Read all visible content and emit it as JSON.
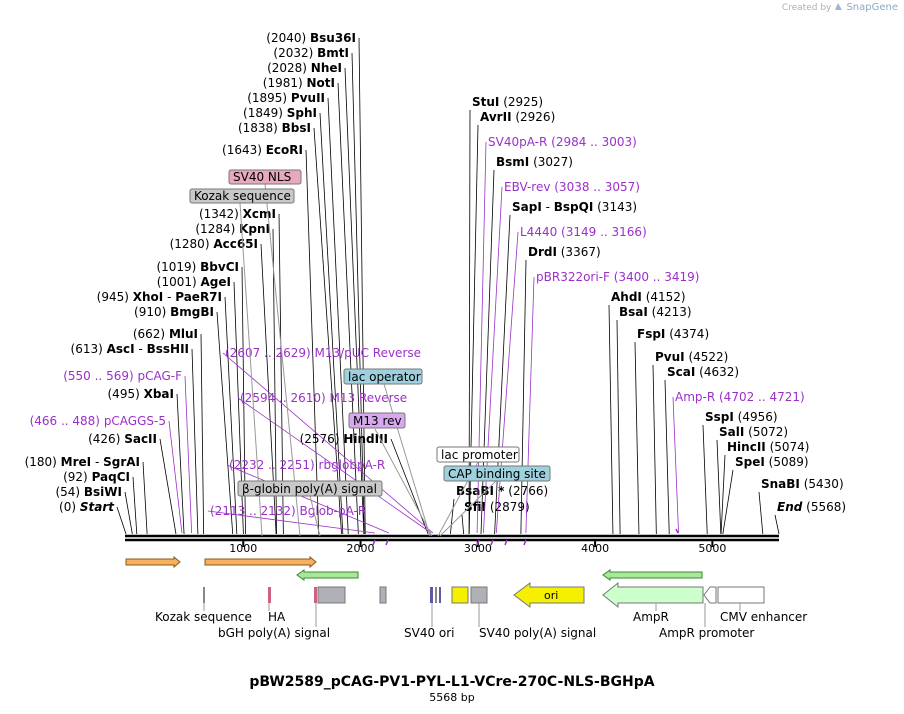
{
  "credit": {
    "prefix": "Created by",
    "brand": "SnapGene"
  },
  "map": {
    "title": "pBW2589_pCAG-PV1-PYL-L1-VCre-270C-NLS-BGHpA",
    "size_label": "5568 bp",
    "length_bp": 5568,
    "ruler_ticks": [
      "1000",
      "2000",
      "3000",
      "4000",
      "5000"
    ],
    "ruler_tick_values": [
      1000,
      2000,
      3000,
      4000,
      5000
    ],
    "colors": {
      "enzyme": "#000000",
      "primer": "#9b30c9",
      "line": "#000000"
    }
  },
  "enzymes_left": [
    {
      "pos": "(0)",
      "name": "Start",
      "bp": 0,
      "italic": true
    },
    {
      "pos": "(54)",
      "name": "BsiWI",
      "bp": 54
    },
    {
      "pos": "(92)",
      "name": "PaqCI",
      "bp": 92
    },
    {
      "pos": "(180)",
      "name": "MreI",
      "sep": "-",
      "name2": "SgrAI",
      "bp": 180
    },
    {
      "pos": "(426)",
      "name": "SacII",
      "bp": 426
    },
    {
      "pos": "(495)",
      "name": "XbaI",
      "bp": 495
    },
    {
      "pos": "(613)",
      "name": "AscI",
      "sep": "-",
      "name2": "BssHII",
      "bp": 613
    },
    {
      "pos": "(662)",
      "name": "MluI",
      "bp": 662
    },
    {
      "pos": "(910)",
      "name": "BmgBI",
      "bp": 910
    },
    {
      "pos": "(945)",
      "name": "XhoI",
      "sep": "-",
      "name2": "PaeR7I",
      "bp": 945
    },
    {
      "pos": "(1001)",
      "name": "AgeI",
      "bp": 1001
    },
    {
      "pos": "(1019)",
      "name": "BbvCI",
      "bp": 1019
    },
    {
      "pos": "(1280)",
      "name": "Acc65I",
      "bp": 1280
    },
    {
      "pos": "(1284)",
      "name": "KpnI",
      "bp": 1284
    },
    {
      "pos": "(1342)",
      "name": "XcmI",
      "bp": 1342
    },
    {
      "pos": "(1643)",
      "name": "EcoRI",
      "bp": 1643
    },
    {
      "pos": "(1838)",
      "name": "BbsI",
      "bp": 1838
    },
    {
      "pos": "(1849)",
      "name": "SphI",
      "bp": 1849
    },
    {
      "pos": "(1895)",
      "name": "PvuII",
      "bp": 1895
    },
    {
      "pos": "(1981)",
      "name": "NotI",
      "bp": 1981
    },
    {
      "pos": "(2028)",
      "name": "NheI",
      "bp": 2028
    },
    {
      "pos": "(2032)",
      "name": "BmtI",
      "bp": 2032
    },
    {
      "pos": "(2040)",
      "name": "Bsu36I",
      "bp": 2040
    },
    {
      "pos": "(2576)",
      "name": "HindIII",
      "bp": 2576
    }
  ],
  "enzymes_right": [
    {
      "name": "StuI",
      "pos": "(2925)",
      "bp": 2925
    },
    {
      "name": "AvrII",
      "pos": "(2926)",
      "bp": 2926
    },
    {
      "name": "BsmI",
      "pos": "(3027)",
      "bp": 3027
    },
    {
      "name": "SapI",
      "sep": "-",
      "name2": "BspQI",
      "pos": "(3143)",
      "bp": 3143
    },
    {
      "name": "DrdI",
      "pos": "(3367)",
      "bp": 3367
    },
    {
      "name": "BsaBI",
      "star": "*",
      "pos": "(2766)",
      "bp": 2766
    },
    {
      "name": "SfiI",
      "pos": "(2879)",
      "bp": 2879
    },
    {
      "name": "AhdI",
      "pos": "(4152)",
      "bp": 4152
    },
    {
      "name": "BsaI",
      "pos": "(4213)",
      "bp": 4213
    },
    {
      "name": "FspI",
      "pos": "(4374)",
      "bp": 4374
    },
    {
      "name": "PvuI",
      "pos": "(4522)",
      "bp": 4522
    },
    {
      "name": "ScaI",
      "pos": "(4632)",
      "bp": 4632
    },
    {
      "name": "SspI",
      "pos": "(4956)",
      "bp": 4956
    },
    {
      "name": "SalI",
      "pos": "(5072)",
      "bp": 5072
    },
    {
      "name": "HincII",
      "pos": "(5074)",
      "bp": 5074
    },
    {
      "name": "SpeI",
      "pos": "(5089)",
      "bp": 5089
    },
    {
      "name": "SnaBI",
      "pos": "(5430)",
      "bp": 5430
    },
    {
      "name": "End",
      "pos": "(5568)",
      "bp": 5568,
      "italic": true
    }
  ],
  "primers": [
    {
      "range": "(550 .. 569)",
      "name": "pCAG-F",
      "start": 550,
      "end": 569
    },
    {
      "range": "(466 .. 488)",
      "name": "pCAGGS-5",
      "start": 466,
      "end": 488
    },
    {
      "range": "(2607 .. 2629)",
      "name": "M13/pUC Reverse",
      "start": 2607,
      "end": 2629
    },
    {
      "range": "(2594 .. 2610)",
      "name": "M13 Reverse",
      "start": 2594,
      "end": 2610
    },
    {
      "range": "(2232 .. 2251)",
      "name": "rbglobpA-R",
      "start": 2232,
      "end": 2251
    },
    {
      "range": "(2113 .. 2132)",
      "name": "Bglob-pA-R",
      "start": 2113,
      "end": 2132
    },
    {
      "name": "SV40pA-R",
      "range": "(2984 .. 3003)",
      "start": 2984,
      "end": 3003
    },
    {
      "name": "EBV-rev",
      "range": "(3038 .. 3057)",
      "start": 3038,
      "end": 3057
    },
    {
      "name": "L4440",
      "range": "(3149 .. 3166)",
      "start": 3149,
      "end": 3166
    },
    {
      "name": "pBR322ori-F",
      "range": "(3400 .. 3419)",
      "start": 3400,
      "end": 3419
    },
    {
      "name": "Amp-R",
      "range": "(4702 .. 4721)",
      "start": 4702,
      "end": 4721
    }
  ],
  "feature_labels": {
    "sv40_nls": "SV40 NLS",
    "kozak_box": "Kozak sequence",
    "lac_operator": "lac operator",
    "m13_rev": "M13 rev",
    "beta_globin": "β-globin poly(A) signal",
    "lac_promoter": "lac promoter",
    "cap_site": "CAP binding site",
    "ori": "ori"
  },
  "bottom_labels": {
    "kozak": "Kozak sequence",
    "ha": "HA",
    "bgh": "bGH poly(A) signal",
    "sv40_ori": "SV40 ori",
    "sv40_polya": "SV40 poly(A) signal",
    "ampr": "AmpR",
    "ampr_promoter": "AmpR promoter",
    "cmv": "CMV enhancer"
  }
}
